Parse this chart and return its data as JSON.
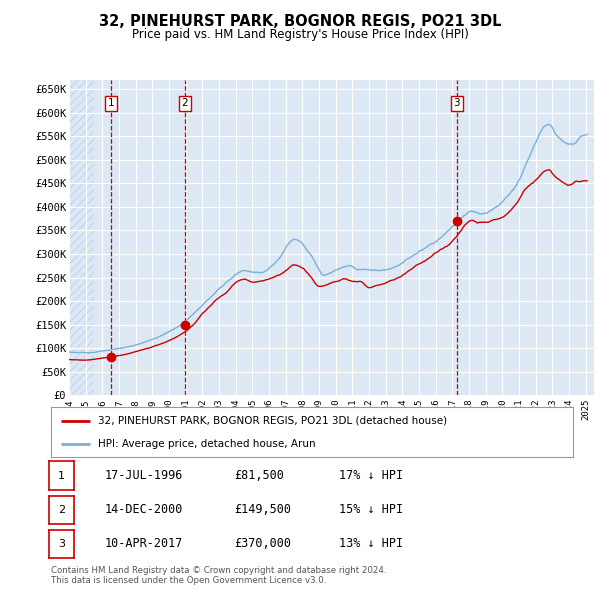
{
  "title": "32, PINEHURST PARK, BOGNOR REGIS, PO21 3DL",
  "subtitle": "Price paid vs. HM Land Registry's House Price Index (HPI)",
  "ylabel_ticks": [
    "£0",
    "£50K",
    "£100K",
    "£150K",
    "£200K",
    "£250K",
    "£300K",
    "£350K",
    "£400K",
    "£450K",
    "£500K",
    "£550K",
    "£600K",
    "£650K"
  ],
  "ytick_values": [
    0,
    50000,
    100000,
    150000,
    200000,
    250000,
    300000,
    350000,
    400000,
    450000,
    500000,
    550000,
    600000,
    650000
  ],
  "xlim_start": 1994.0,
  "xlim_end": 2025.5,
  "ylim_min": 0,
  "ylim_max": 670000,
  "bg_color": "#dce9f5",
  "hatch_color": "#c5d8ee",
  "grid_color": "#ffffff",
  "red_line_color": "#cc0000",
  "blue_line_color": "#7ab0d4",
  "sale_dates": [
    1996.54,
    2000.96,
    2017.27
  ],
  "sale_prices": [
    81500,
    149500,
    370000
  ],
  "sale_labels": [
    "1",
    "2",
    "3"
  ],
  "vline_color": "#cc0000",
  "legend_red_label": "32, PINEHURST PARK, BOGNOR REGIS, PO21 3DL (detached house)",
  "legend_blue_label": "HPI: Average price, detached house, Arun",
  "table_rows": [
    {
      "num": "1",
      "date": "17-JUL-1996",
      "price": "£81,500",
      "hpi": "17% ↓ HPI"
    },
    {
      "num": "2",
      "date": "14-DEC-2000",
      "price": "£149,500",
      "hpi": "15% ↓ HPI"
    },
    {
      "num": "3",
      "date": "10-APR-2017",
      "price": "£370,000",
      "hpi": "13% ↓ HPI"
    }
  ],
  "footer": "Contains HM Land Registry data © Crown copyright and database right 2024.\nThis data is licensed under the Open Government Licence v3.0.",
  "xtick_years": [
    1994,
    1995,
    1996,
    1997,
    1998,
    1999,
    2000,
    2001,
    2002,
    2003,
    2004,
    2005,
    2006,
    2007,
    2008,
    2009,
    2010,
    2011,
    2012,
    2013,
    2014,
    2015,
    2016,
    2017,
    2018,
    2019,
    2020,
    2021,
    2022,
    2023,
    2024,
    2025
  ]
}
